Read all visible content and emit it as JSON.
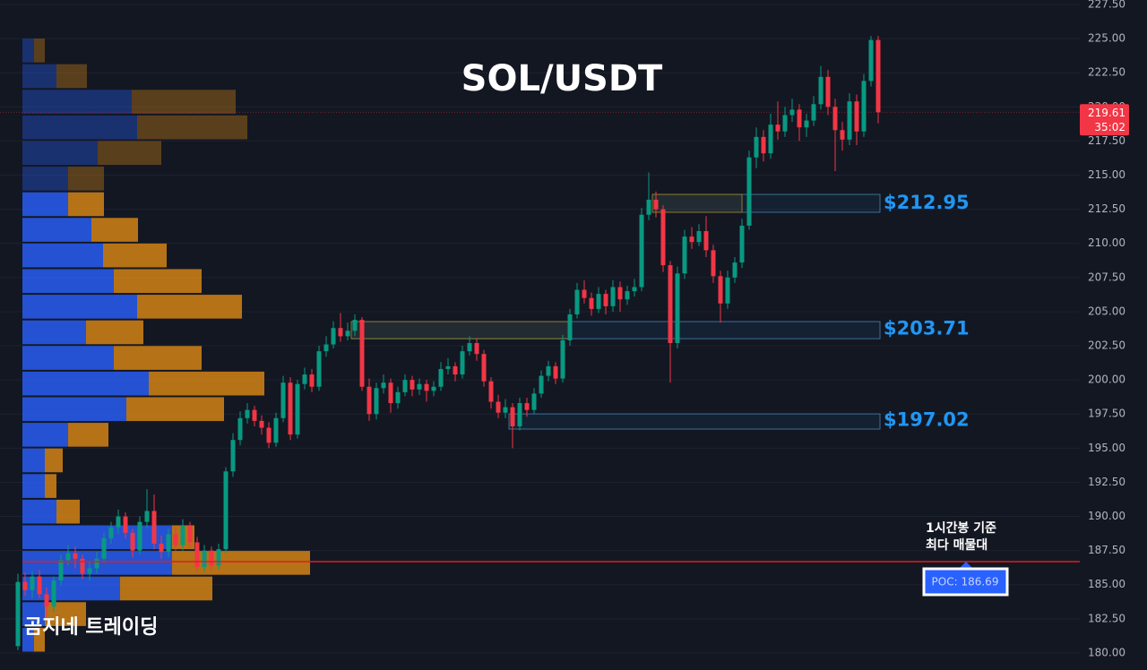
{
  "chart_data": {
    "type": "candlestick",
    "title": "SOL/USDT",
    "watermark": "곰지네 트레이딩",
    "ylim": [
      178.75,
      227.83
    ],
    "yticks": [
      {
        "value": 180,
        "label": "180.00"
      },
      {
        "value": 182.5,
        "label": "182.50"
      },
      {
        "value": 185,
        "label": "185.00"
      },
      {
        "value": 187.5,
        "label": "187.50"
      },
      {
        "value": 190,
        "label": "190.00"
      },
      {
        "value": 192.5,
        "label": "192.50"
      },
      {
        "value": 195,
        "label": "195.00"
      },
      {
        "value": 197.5,
        "label": "197.50"
      },
      {
        "value": 200,
        "label": "200.00"
      },
      {
        "value": 202.5,
        "label": "202.50"
      },
      {
        "value": 205,
        "label": "205.00"
      },
      {
        "value": 207.5,
        "label": "207.50"
      },
      {
        "value": 210,
        "label": "210.00"
      },
      {
        "value": 212.5,
        "label": "212.50"
      },
      {
        "value": 215,
        "label": "215.00"
      },
      {
        "value": 217.5,
        "label": "217.50"
      },
      {
        "value": 220,
        "label": "220.00"
      },
      {
        "value": 222.5,
        "label": "222.50"
      },
      {
        "value": 225,
        "label": "225.00"
      },
      {
        "value": 227.5,
        "label": "227.50"
      }
    ],
    "grid": true,
    "up_color": "#089981",
    "down_color": "#f23645",
    "last_price": 219.61,
    "countdown": "35:02",
    "ohlc": [
      [
        180.5,
        185.8,
        180.2,
        185.2
      ],
      [
        185.2,
        185.9,
        184.2,
        184.6
      ],
      [
        184.6,
        186.0,
        184.0,
        185.6
      ],
      [
        185.6,
        186.1,
        184.0,
        184.3
      ],
      [
        184.3,
        184.8,
        182.5,
        183.4
      ],
      [
        183.4,
        185.6,
        183.0,
        185.3
      ],
      [
        185.3,
        187.2,
        184.9,
        186.8
      ],
      [
        186.8,
        187.9,
        186.4,
        187.3
      ],
      [
        187.3,
        187.8,
        186.2,
        186.9
      ],
      [
        186.9,
        187.2,
        185.4,
        185.8
      ],
      [
        185.8,
        186.7,
        185.3,
        186.2
      ],
      [
        186.2,
        187.4,
        185.8,
        186.9
      ],
      [
        186.9,
        188.8,
        186.6,
        188.4
      ],
      [
        188.4,
        189.6,
        188.0,
        189.2
      ],
      [
        189.2,
        190.5,
        188.7,
        190.0
      ],
      [
        190.0,
        190.3,
        188.4,
        188.8
      ],
      [
        188.8,
        189.1,
        187.0,
        187.5
      ],
      [
        187.5,
        190.0,
        187.2,
        189.6
      ],
      [
        189.6,
        192.0,
        189.1,
        190.4
      ],
      [
        190.4,
        191.6,
        187.6,
        188.0
      ],
      [
        188.0,
        188.6,
        186.9,
        187.4
      ],
      [
        187.4,
        189.1,
        187.0,
        188.7
      ],
      [
        188.7,
        189.2,
        187.5,
        187.9
      ],
      [
        187.9,
        189.8,
        187.5,
        189.3
      ],
      [
        189.3,
        189.6,
        187.7,
        188.1
      ],
      [
        188.1,
        188.5,
        185.9,
        186.3
      ],
      [
        186.3,
        187.9,
        185.9,
        187.5
      ],
      [
        187.5,
        187.8,
        186.0,
        186.4
      ],
      [
        186.4,
        188.0,
        186.1,
        187.6
      ],
      [
        187.6,
        193.6,
        187.3,
        193.3
      ],
      [
        193.3,
        196.1,
        192.9,
        195.6
      ],
      [
        195.6,
        197.7,
        195.2,
        197.2
      ],
      [
        197.2,
        198.3,
        196.8,
        197.8
      ],
      [
        197.8,
        198.1,
        196.6,
        197.0
      ],
      [
        197.0,
        197.4,
        196.0,
        196.5
      ],
      [
        196.5,
        196.9,
        195.0,
        195.4
      ],
      [
        195.4,
        197.6,
        195.1,
        197.2
      ],
      [
        197.2,
        200.3,
        196.9,
        199.8
      ],
      [
        199.8,
        200.2,
        195.6,
        196.0
      ],
      [
        196.0,
        200.0,
        195.7,
        199.7
      ],
      [
        199.7,
        200.9,
        199.3,
        200.4
      ],
      [
        200.4,
        200.8,
        199.1,
        199.5
      ],
      [
        199.5,
        202.5,
        199.2,
        202.1
      ],
      [
        202.1,
        203.2,
        201.7,
        202.6
      ],
      [
        202.6,
        204.3,
        202.3,
        203.8
      ],
      [
        203.8,
        204.9,
        202.8,
        203.2
      ],
      [
        203.2,
        204.2,
        202.9,
        203.6
      ],
      [
        203.6,
        204.8,
        203.2,
        204.4
      ],
      [
        204.4,
        204.6,
        199.2,
        199.5
      ],
      [
        199.5,
        200.1,
        197.0,
        197.5
      ],
      [
        197.5,
        199.8,
        197.1,
        199.4
      ],
      [
        199.4,
        200.4,
        199.0,
        199.8
      ],
      [
        199.8,
        200.1,
        197.6,
        198.3
      ],
      [
        198.3,
        199.5,
        197.9,
        199.1
      ],
      [
        199.1,
        200.4,
        198.8,
        200.0
      ],
      [
        200.0,
        200.3,
        198.8,
        199.3
      ],
      [
        199.3,
        200.1,
        198.9,
        199.7
      ],
      [
        199.7,
        200.0,
        198.4,
        199.2
      ],
      [
        199.2,
        199.9,
        198.8,
        199.5
      ],
      [
        199.5,
        201.3,
        199.2,
        200.8
      ],
      [
        200.8,
        201.6,
        200.4,
        201.0
      ],
      [
        201.0,
        201.3,
        199.9,
        200.4
      ],
      [
        200.4,
        202.5,
        200.1,
        202.1
      ],
      [
        202.1,
        203.2,
        201.8,
        202.7
      ],
      [
        202.7,
        203.0,
        201.4,
        201.9
      ],
      [
        201.9,
        202.2,
        199.5,
        199.9
      ],
      [
        199.9,
        200.2,
        197.9,
        198.4
      ],
      [
        198.4,
        198.9,
        197.2,
        197.6
      ],
      [
        197.6,
        198.6,
        197.2,
        198.0
      ],
      [
        198.0,
        198.3,
        195.0,
        196.6
      ],
      [
        196.6,
        198.7,
        196.3,
        198.3
      ],
      [
        198.3,
        198.7,
        197.3,
        197.8
      ],
      [
        197.8,
        199.4,
        197.5,
        199.0
      ],
      [
        199.0,
        200.7,
        198.7,
        200.3
      ],
      [
        200.3,
        201.4,
        199.9,
        201.0
      ],
      [
        201.0,
        201.3,
        199.7,
        200.1
      ],
      [
        200.1,
        203.3,
        199.8,
        202.9
      ],
      [
        202.9,
        205.2,
        202.5,
        204.8
      ],
      [
        204.8,
        207.1,
        204.5,
        206.6
      ],
      [
        206.6,
        207.3,
        205.6,
        206.0
      ],
      [
        206.0,
        206.4,
        204.7,
        205.2
      ],
      [
        205.2,
        206.8,
        204.9,
        206.3
      ],
      [
        206.3,
        206.6,
        204.8,
        205.4
      ],
      [
        205.4,
        207.3,
        205.0,
        206.8
      ],
      [
        206.8,
        207.2,
        205.0,
        205.9
      ],
      [
        205.9,
        206.9,
        205.5,
        206.5
      ],
      [
        206.5,
        207.4,
        206.1,
        206.8
      ],
      [
        206.8,
        212.6,
        206.5,
        212.1
      ],
      [
        212.1,
        215.2,
        211.7,
        213.2
      ],
      [
        213.2,
        213.8,
        211.9,
        212.5
      ],
      [
        212.5,
        212.8,
        207.9,
        208.4
      ],
      [
        208.4,
        208.7,
        199.8,
        202.7
      ],
      [
        202.7,
        208.3,
        202.3,
        207.8
      ],
      [
        207.8,
        211.0,
        207.4,
        210.5
      ],
      [
        210.5,
        211.2,
        209.6,
        210.1
      ],
      [
        210.1,
        211.4,
        209.8,
        210.9
      ],
      [
        210.9,
        212.0,
        209.0,
        209.5
      ],
      [
        209.5,
        209.9,
        207.1,
        207.6
      ],
      [
        207.6,
        208.0,
        204.2,
        205.6
      ],
      [
        205.6,
        208.0,
        205.2,
        207.5
      ],
      [
        207.5,
        209.0,
        207.1,
        208.6
      ],
      [
        208.6,
        211.8,
        208.2,
        211.3
      ],
      [
        211.3,
        216.8,
        211.0,
        216.3
      ],
      [
        216.3,
        218.5,
        215.5,
        217.8
      ],
      [
        217.8,
        218.3,
        216.0,
        216.6
      ],
      [
        216.6,
        219.5,
        216.2,
        218.7
      ],
      [
        218.7,
        220.4,
        217.6,
        218.2
      ],
      [
        218.2,
        220.0,
        217.8,
        219.4
      ],
      [
        219.4,
        220.6,
        218.9,
        219.8
      ],
      [
        219.8,
        220.2,
        217.5,
        218.5
      ],
      [
        218.5,
        219.5,
        217.8,
        219.0
      ],
      [
        219.0,
        220.8,
        218.6,
        220.2
      ],
      [
        220.2,
        223.0,
        219.8,
        222.2
      ],
      [
        222.2,
        222.7,
        219.4,
        220.0
      ],
      [
        220.0,
        220.6,
        215.3,
        218.3
      ],
      [
        218.3,
        218.9,
        216.8,
        217.6
      ],
      [
        217.6,
        221.0,
        217.2,
        220.4
      ],
      [
        220.4,
        220.9,
        217.2,
        218.2
      ],
      [
        218.2,
        222.4,
        217.8,
        221.9
      ],
      [
        221.9,
        225.2,
        221.5,
        224.9
      ],
      [
        224.9,
        225.2,
        218.8,
        219.61
      ]
    ],
    "zones": [
      {
        "label": "$212.95",
        "value": 212.95,
        "low": 212.28,
        "high": 213.59,
        "from": 89,
        "highlight_to": 101
      },
      {
        "label": "$203.71",
        "value": 203.71,
        "low": 203.02,
        "high": 204.27,
        "from": 47,
        "highlight_to": 77
      },
      {
        "label": "$197.02",
        "value": 197.02,
        "low": 196.4,
        "high": 197.51,
        "from": 69,
        "highlight_to": 69
      }
    ],
    "volume_profile": {
      "range": [
        180.03,
        225.07
      ],
      "buy": [
        13,
        38,
        122,
        128,
        84,
        51,
        51,
        77,
        90,
        102,
        128,
        71,
        102,
        141,
        116,
        51,
        25,
        25,
        38,
        167,
        167,
        109,
        25,
        13
      ],
      "sell": [
        12,
        34,
        116,
        123,
        71,
        40,
        40,
        52,
        71,
        98,
        117,
        64,
        98,
        129,
        109,
        45,
        20,
        13,
        26,
        25,
        154,
        103,
        46,
        12
      ],
      "buy_color": "#2962ff",
      "sell_color": "#e08a14",
      "value_area_high": 211.95
    },
    "poc": {
      "value": 186.69,
      "label": "POC: 186.69",
      "color": "#e01e1e",
      "note": [
        "1시간봉 기준",
        "최다 매물대"
      ]
    }
  }
}
